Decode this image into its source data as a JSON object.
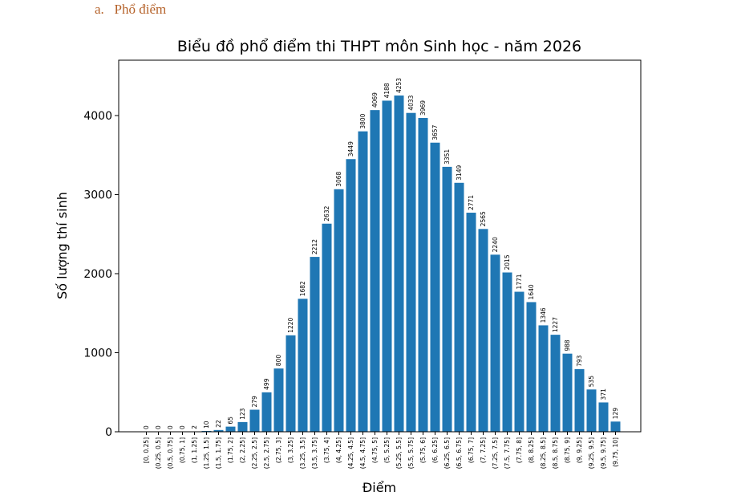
{
  "doc": {
    "heading_marker": "a.",
    "heading_text": "Phổ điểm"
  },
  "chart_data": {
    "type": "bar",
    "title": "Biểu đồ phổ điểm thi THPT môn Sinh học - năm 2026",
    "xlabel": "Điểm",
    "ylabel": "Số lượng thí sinh",
    "ylim": [
      0,
      4700
    ],
    "yticks": [
      0,
      1000,
      2000,
      3000,
      4000
    ],
    "grid": false,
    "bar_color": "#1f77b4",
    "categories": [
      "[0, 0.25]",
      "(0.25, 0.5]",
      "(0.5, 0.75]",
      "(0.75, 1]",
      "(1, 1.25]",
      "(1.25, 1.5]",
      "(1.5, 1.75]",
      "(1.75, 2]",
      "(2, 2.25]",
      "(2.25, 2.5]",
      "(2.5, 2.75]",
      "(2.75, 3]",
      "(3, 3.25]",
      "(3.25, 3.5]",
      "(3.5, 3.75]",
      "(3.75, 4]",
      "(4, 4.25]",
      "(4.25, 4.5]",
      "(4.5, 4.75]",
      "(4.75, 5]",
      "(5, 5.25]",
      "(5.25, 5.5]",
      "(5.5, 5.75]",
      "(5.75, 6]",
      "(6, 6.25]",
      "(6.25, 6.5]",
      "(6.5, 6.75]",
      "(6.75, 7]",
      "(7, 7.25]",
      "(7.25, 7.5]",
      "(7.5, 7.75]",
      "(7.75, 8]",
      "(8, 8.25]",
      "(8.25, 8.5]",
      "(8.5, 8.75]",
      "(8.75, 9]",
      "(9, 9.25]",
      "(9.25, 9.5]",
      "(9.5, 9.75]",
      "(9.75, 10]"
    ],
    "values": [
      0,
      0,
      0,
      0,
      2,
      10,
      22,
      65,
      123,
      279,
      499,
      800,
      1220,
      1682,
      2212,
      2632,
      3068,
      3449,
      3800,
      4069,
      4188,
      4253,
      4033,
      3969,
      3657,
      3351,
      3149,
      2771,
      2565,
      2240,
      2015,
      1771,
      1640,
      1346,
      1227,
      988,
      793,
      535,
      371,
      129
    ]
  }
}
